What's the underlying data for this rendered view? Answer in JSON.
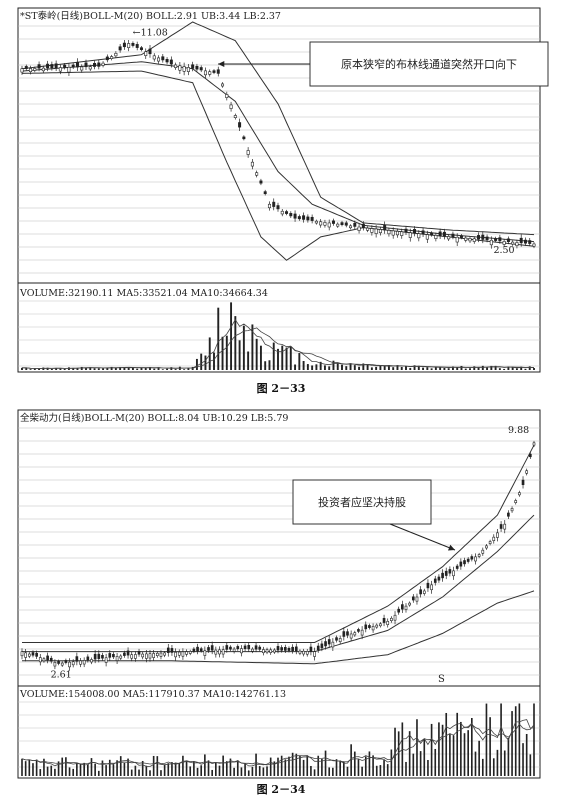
{
  "chart_data": [
    {
      "type": "candlestick",
      "indicator_header": "*ST泰岭(日线)BOLL-M(20) BOLL:2.91 UB:3.44 LB:2.37",
      "annotations": {
        "high_label": "11.08",
        "low_label": "2.50",
        "callout": "原本狭窄的布林线通道突然开口向下"
      },
      "price_range": [
        1.0,
        12.0
      ],
      "price_path": [
        [
          0,
          10
        ],
        [
          18,
          10.1
        ],
        [
          25,
          11.08
        ],
        [
          35,
          10.2
        ],
        [
          46,
          9.8
        ],
        [
          50,
          8
        ],
        [
          54,
          6
        ],
        [
          58,
          4.2
        ],
        [
          64,
          3.6
        ],
        [
          80,
          3.2
        ],
        [
          95,
          2.9
        ],
        [
          120,
          2.5
        ]
      ],
      "boll": {
        "upper": [
          [
            0,
            10
          ],
          [
            28,
            10.6
          ],
          [
            40,
            12.0
          ],
          [
            50,
            11.2
          ],
          [
            60,
            8.5
          ],
          [
            70,
            4.5
          ],
          [
            80,
            3.4
          ],
          [
            100,
            3.1
          ],
          [
            120,
            2.9
          ]
        ],
        "middle": [
          [
            0,
            9.9
          ],
          [
            28,
            10.3
          ],
          [
            40,
            10.0
          ],
          [
            50,
            8.6
          ],
          [
            60,
            5.6
          ],
          [
            68,
            4.2
          ],
          [
            80,
            3.3
          ],
          [
            100,
            2.9
          ],
          [
            120,
            2.6
          ]
        ],
        "lower": [
          [
            0,
            9.8
          ],
          [
            28,
            9.9
          ],
          [
            40,
            9.4
          ],
          [
            48,
            6.0
          ],
          [
            56,
            2.8
          ],
          [
            62,
            1.8
          ],
          [
            70,
            2.8
          ],
          [
            80,
            3.2
          ],
          [
            100,
            2.8
          ],
          [
            120,
            2.4
          ]
        ]
      },
      "volume_header": "VOLUME:32190.11 MA5:33521.04 MA10:34664.34",
      "volume_range": [
        0,
        60000
      ],
      "volume_path": [
        [
          0,
          1500
        ],
        [
          40,
          1800
        ],
        [
          44,
          20000
        ],
        [
          48,
          55000
        ],
        [
          52,
          40000
        ],
        [
          58,
          18000
        ],
        [
          70,
          6000
        ],
        [
          90,
          3000
        ],
        [
          120,
          2000
        ]
      ],
      "caption": "图 2－33"
    },
    {
      "type": "candlestick",
      "indicator_header": "全柴动力(日线)BOLL-M(20) BOLL:8.04 UB:10.29 LB:5.79",
      "annotations": {
        "high_label": "9.88",
        "low_label": "2.61",
        "callout": "投资者应坚决持股",
        "marker": "S"
      },
      "price_range": [
        2.0,
        10.5
      ],
      "price_path": [
        [
          0,
          3.0
        ],
        [
          10,
          2.61
        ],
        [
          30,
          2.9
        ],
        [
          60,
          3.1
        ],
        [
          80,
          3.0
        ],
        [
          88,
          3.5
        ],
        [
          100,
          4.0
        ],
        [
          112,
          5.2
        ],
        [
          125,
          6.2
        ],
        [
          132,
          7.2
        ],
        [
          137,
          8.5
        ],
        [
          140,
          9.88
        ]
      ],
      "boll": {
        "upper": [
          [
            0,
            3.3
          ],
          [
            40,
            3.3
          ],
          [
            80,
            3.3
          ],
          [
            100,
            4.5
          ],
          [
            115,
            5.8
          ],
          [
            130,
            7.5
          ],
          [
            140,
            9.8
          ]
        ],
        "middle": [
          [
            0,
            3.0
          ],
          [
            40,
            3.0
          ],
          [
            80,
            3.0
          ],
          [
            100,
            3.7
          ],
          [
            115,
            4.8
          ],
          [
            130,
            6.3
          ],
          [
            140,
            7.5
          ]
        ],
        "lower": [
          [
            0,
            2.7
          ],
          [
            40,
            2.7
          ],
          [
            80,
            2.6
          ],
          [
            100,
            2.9
          ],
          [
            115,
            3.6
          ],
          [
            130,
            4.6
          ],
          [
            140,
            5.0
          ]
        ]
      },
      "volume_header": "VOLUME:154008.00 MA5:117910.37 MA10:142761.13",
      "volume_range": [
        0,
        200000
      ],
      "volume_path": [
        [
          0,
          30000
        ],
        [
          40,
          35000
        ],
        [
          80,
          40000
        ],
        [
          100,
          80000
        ],
        [
          120,
          120000
        ],
        [
          140,
          150000
        ]
      ],
      "caption": "图 2－34"
    }
  ]
}
